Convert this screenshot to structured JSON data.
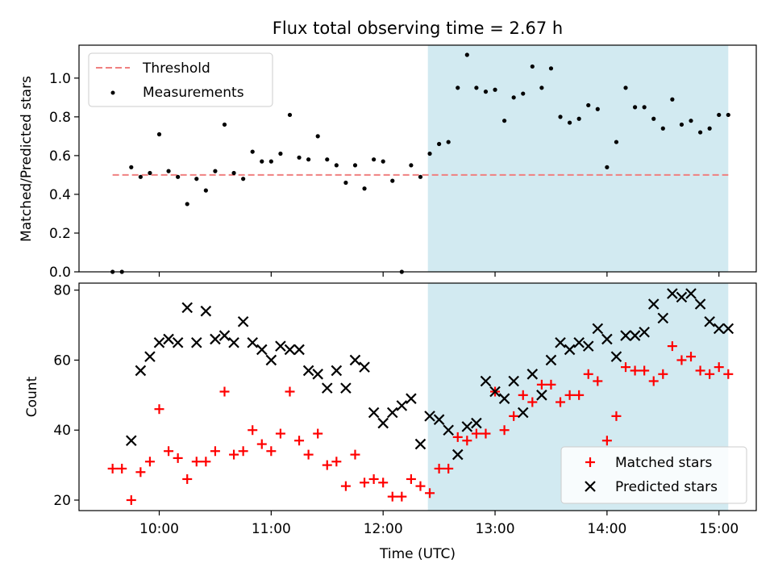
{
  "figure": {
    "title": "Flux total observing time = 2.67 h"
  },
  "colors": {
    "threshold": "#f08080",
    "measurements": "#000000",
    "matched": "#ff0000",
    "predicted": "#000000",
    "span": "#add8e6"
  },
  "chart_data": [
    {
      "type": "scatter",
      "ylabel": "Matched/Predicted stars",
      "ylim": [
        0,
        1.17
      ],
      "yticks": [
        "0.0",
        "0.2",
        "0.4",
        "0.6",
        "0.8",
        "1.0"
      ],
      "legend_placement": "top-left",
      "shaded_span": {
        "from": "12:24",
        "to": "15:05"
      },
      "series": [
        {
          "name": "Threshold",
          "kind": "dashed-line",
          "x": [
            "09:35",
            "15:05"
          ],
          "y": [
            0.5,
            0.5
          ]
        },
        {
          "name": "Measurements",
          "kind": "points",
          "x": [
            "09:35",
            "09:40",
            "09:45",
            "09:50",
            "09:55",
            "10:00",
            "10:05",
            "10:10",
            "10:15",
            "10:20",
            "10:25",
            "10:30",
            "10:35",
            "10:40",
            "10:45",
            "10:50",
            "10:55",
            "11:00",
            "11:05",
            "11:10",
            "11:15",
            "11:20",
            "11:25",
            "11:30",
            "11:35",
            "11:40",
            "11:45",
            "11:50",
            "11:55",
            "12:00",
            "12:05",
            "12:10",
            "12:15",
            "12:20",
            "12:25",
            "12:30",
            "12:35",
            "12:40",
            "12:45",
            "12:50",
            "12:55",
            "13:00",
            "13:05",
            "13:10",
            "13:15",
            "13:20",
            "13:25",
            "13:30",
            "13:35",
            "13:40",
            "13:45",
            "13:50",
            "13:55",
            "14:00",
            "14:05",
            "14:10",
            "14:15",
            "14:20",
            "14:25",
            "14:30",
            "14:35",
            "14:40",
            "14:45",
            "14:50",
            "14:55",
            "15:00",
            "15:05"
          ],
          "y": [
            0.0,
            0.0,
            0.54,
            0.49,
            0.51,
            0.71,
            0.52,
            0.49,
            0.35,
            0.48,
            0.42,
            0.52,
            0.76,
            0.51,
            0.48,
            0.62,
            0.57,
            0.57,
            0.61,
            0.81,
            0.59,
            0.58,
            0.7,
            0.58,
            0.55,
            0.46,
            0.55,
            0.43,
            0.58,
            0.57,
            0.47,
            0.0,
            0.55,
            0.49,
            0.61,
            0.66,
            0.67,
            0.95,
            1.12,
            0.95,
            0.93,
            0.94,
            0.78,
            0.9,
            0.92,
            1.06,
            0.95,
            1.05,
            0.8,
            0.77,
            0.79,
            0.86,
            0.84,
            0.54,
            0.67,
            0.95,
            0.85,
            0.85,
            0.79,
            0.74,
            0.89,
            0.76,
            0.78,
            0.72,
            0.74,
            0.81,
            0.81
          ]
        }
      ]
    },
    {
      "type": "scatter",
      "xlabel": "Time (UTC)",
      "ylabel": "Count",
      "ylim": [
        17,
        82
      ],
      "yticks": [
        "20",
        "40",
        "60",
        "80"
      ],
      "xlim": [
        "09:17",
        "15:20"
      ],
      "xticks": [
        "10:00",
        "11:00",
        "12:00",
        "13:00",
        "14:00",
        "15:00"
      ],
      "legend_placement": "lower-right",
      "shaded_span": {
        "from": "12:24",
        "to": "15:05"
      },
      "series": [
        {
          "name": "Matched stars",
          "marker": "+",
          "x": [
            "09:35",
            "09:40",
            "09:45",
            "09:50",
            "09:55",
            "10:00",
            "10:05",
            "10:10",
            "10:15",
            "10:20",
            "10:25",
            "10:30",
            "10:35",
            "10:40",
            "10:45",
            "10:50",
            "10:55",
            "11:00",
            "11:05",
            "11:10",
            "11:15",
            "11:20",
            "11:25",
            "11:30",
            "11:35",
            "11:40",
            "11:45",
            "11:50",
            "11:55",
            "12:00",
            "12:05",
            "12:10",
            "12:15",
            "12:20",
            "12:25",
            "12:30",
            "12:35",
            "12:40",
            "12:45",
            "12:50",
            "12:55",
            "13:00",
            "13:05",
            "13:10",
            "13:15",
            "13:20",
            "13:25",
            "13:30",
            "13:35",
            "13:40",
            "13:45",
            "13:50",
            "13:55",
            "14:00",
            "14:05",
            "14:10",
            "14:15",
            "14:20",
            "14:25",
            "14:30",
            "14:35",
            "14:40",
            "14:45",
            "14:50",
            "14:55",
            "15:00",
            "15:05"
          ],
          "y": [
            29,
            29,
            20,
            28,
            31,
            46,
            34,
            32,
            26,
            31,
            31,
            34,
            51,
            33,
            34,
            40,
            36,
            34,
            39,
            51,
            37,
            33,
            39,
            30,
            31,
            24,
            33,
            25,
            26,
            25,
            21,
            21,
            26,
            24,
            22,
            29,
            29,
            38,
            37,
            39,
            39,
            51,
            40,
            44,
            50,
            48,
            53,
            53,
            48,
            50,
            50,
            56,
            54,
            37,
            44,
            58,
            57,
            57,
            54,
            56,
            64,
            60,
            61,
            57,
            56,
            58,
            56
          ]
        },
        {
          "name": "Predicted stars",
          "marker": "x",
          "x": [
            "09:45",
            "09:50",
            "09:55",
            "10:00",
            "10:05",
            "10:10",
            "10:15",
            "10:20",
            "10:25",
            "10:30",
            "10:35",
            "10:40",
            "10:45",
            "10:50",
            "10:55",
            "11:00",
            "11:05",
            "11:10",
            "11:15",
            "11:20",
            "11:25",
            "11:30",
            "11:35",
            "11:40",
            "11:45",
            "11:50",
            "11:55",
            "12:00",
            "12:05",
            "12:10",
            "12:15",
            "12:20",
            "12:25",
            "12:30",
            "12:35",
            "12:40",
            "12:45",
            "12:50",
            "12:55",
            "13:00",
            "13:05",
            "13:10",
            "13:15",
            "13:20",
            "13:25",
            "13:30",
            "13:35",
            "13:40",
            "13:45",
            "13:50",
            "13:55",
            "14:00",
            "14:05",
            "14:10",
            "14:15",
            "14:20",
            "14:25",
            "14:30",
            "14:35",
            "14:40",
            "14:45",
            "14:50",
            "14:55",
            "15:00",
            "15:05"
          ],
          "y": [
            37,
            57,
            61,
            65,
            66,
            65,
            75,
            65,
            74,
            66,
            67,
            65,
            71,
            65,
            63,
            60,
            64,
            63,
            63,
            57,
            56,
            52,
            57,
            52,
            60,
            58,
            45,
            42,
            45,
            47,
            49,
            36,
            44,
            43,
            40,
            33,
            41,
            42,
            54,
            51,
            49,
            54,
            45,
            56,
            50,
            60,
            65,
            63,
            65,
            64,
            69,
            66,
            61,
            67,
            67,
            68,
            76,
            72,
            79,
            78,
            79,
            76,
            71,
            69,
            69
          ]
        }
      ]
    }
  ]
}
